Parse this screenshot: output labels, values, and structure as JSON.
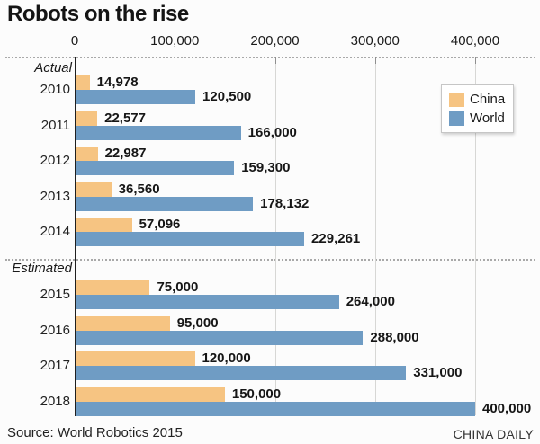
{
  "title": "Robots on the rise",
  "source": "Source: World Robotics 2015",
  "credit": "CHINA DAILY",
  "legend": {
    "china_label": "China",
    "world_label": "World"
  },
  "colors": {
    "china": "#f6c482",
    "world": "#6f9cc4",
    "gridline": "#d7d7d5",
    "axis": "#1f1f1f",
    "dotted_line": "#a9a9a9",
    "text": "#1a1a1a",
    "legend_border": "#c6c6c6",
    "background": "#fcfcfc"
  },
  "chart_data": {
    "type": "bar",
    "orientation": "horizontal",
    "title": "Robots on the rise",
    "xlabel": "",
    "ylabel": "",
    "xlim": [
      0,
      400000
    ],
    "grid": "vertical",
    "legend_position": "top-right",
    "x_ticks": {
      "values": [
        0,
        100000,
        200000,
        300000,
        400000
      ],
      "labels": [
        "0",
        "100,000",
        "200,000",
        "300,000",
        "400,000"
      ]
    },
    "categories": [
      "2010",
      "2011",
      "2012",
      "2013",
      "2014",
      "2015",
      "2016",
      "2017",
      "2018"
    ],
    "series": [
      {
        "name": "China",
        "values": [
          14978,
          22577,
          22987,
          36560,
          57096,
          75000,
          95000,
          120000,
          150000
        ]
      },
      {
        "name": "World",
        "values": [
          120500,
          166000,
          159300,
          178132,
          229261,
          264000,
          288000,
          331000,
          400000
        ]
      }
    ],
    "sections": [
      {
        "label": "Actual",
        "rows": [
          {
            "year": "2010",
            "china": 14978,
            "china_label": "14,978",
            "world": 120500,
            "world_label": "120,500"
          },
          {
            "year": "2011",
            "china": 22577,
            "china_label": "22,577",
            "world": 166000,
            "world_label": "166,000"
          },
          {
            "year": "2012",
            "china": 22987,
            "china_label": "22,987",
            "world": 159300,
            "world_label": "159,300"
          },
          {
            "year": "2013",
            "china": 36560,
            "china_label": "36,560",
            "world": 178132,
            "world_label": "178,132"
          },
          {
            "year": "2014",
            "china": 57096,
            "china_label": "57,096",
            "world": 229261,
            "world_label": "229,261"
          }
        ]
      },
      {
        "label": "Estimated",
        "rows": [
          {
            "year": "2015",
            "china": 75000,
            "china_label": "75,000",
            "world": 264000,
            "world_label": "264,000"
          },
          {
            "year": "2016",
            "china": 95000,
            "china_label": "95,000",
            "world": 288000,
            "world_label": "288,000"
          },
          {
            "year": "2017",
            "china": 120000,
            "china_label": "120,000",
            "world": 331000,
            "world_label": "331,000"
          },
          {
            "year": "2018",
            "china": 150000,
            "china_label": "150,000",
            "world": 400000,
            "world_label": "400,000"
          }
        ]
      }
    ]
  }
}
